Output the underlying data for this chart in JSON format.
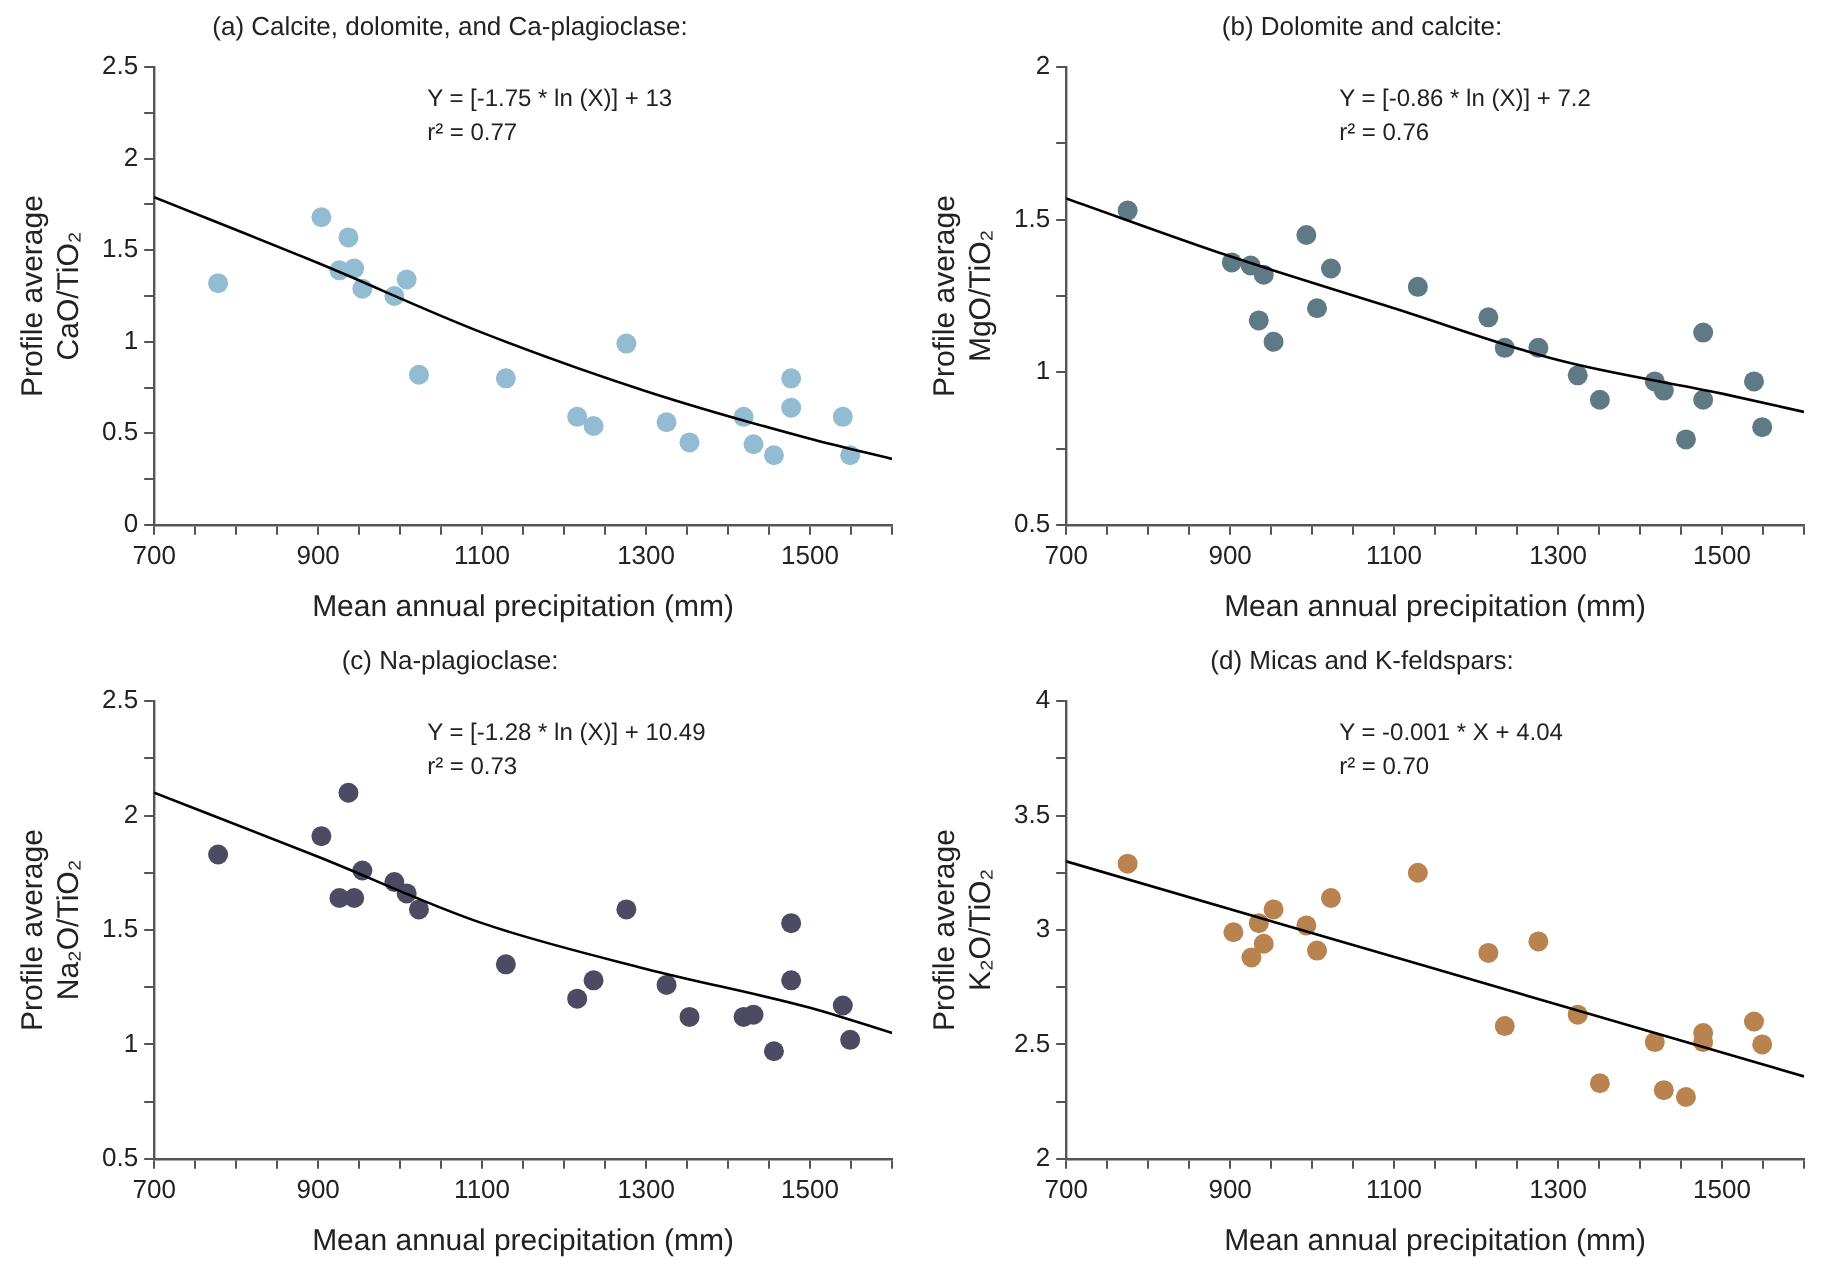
{
  "chart_data": [
    {
      "type": "scatter",
      "title": "(a) Calcite, dolomite, and Ca-plagioclase:",
      "xlabel": "Mean annual precipitation (mm)",
      "ylabel": "Profile average\nCaO/TiO₂",
      "annotations": [
        "Y = [-1.75 * ln (X)] + 13",
        "r² = 0.77"
      ],
      "legend": false,
      "grid": false,
      "marker": "circle",
      "xlim": [
        700,
        1600
      ],
      "xticks": [
        700,
        {
          "value": 750,
          "label": null
        },
        {
          "value": 800,
          "label": null
        },
        {
          "value": 850,
          "label": null
        },
        900,
        {
          "value": 950,
          "label": null
        },
        {
          "value": 1000,
          "label": null
        },
        {
          "value": 1050,
          "label": null
        },
        1100,
        {
          "value": 1150,
          "label": null
        },
        {
          "value": 1200,
          "label": null
        },
        {
          "value": 1250,
          "label": null
        },
        1300,
        {
          "value": 1350,
          "label": null
        },
        {
          "value": 1400,
          "label": null
        },
        {
          "value": 1450,
          "label": null
        },
        1500,
        {
          "value": 1550,
          "label": null
        },
        {
          "value": 1600,
          "label": null
        }
      ],
      "ylim": [
        0,
        2.5
      ],
      "yticks": [
        0,
        {
          "value": 0.25,
          "label": null
        },
        0.5,
        {
          "value": 0.75,
          "label": null
        },
        1,
        {
          "value": 1.25,
          "label": null
        },
        1.5,
        {
          "value": 1.75,
          "label": null
        },
        2,
        {
          "value": 2.25,
          "label": null
        },
        2.5
      ],
      "x": [
        778,
        904,
        937,
        926,
        944,
        954,
        993,
        1008,
        1023,
        1129,
        1216,
        1236,
        1276,
        1325,
        1353,
        1419,
        1431,
        1456,
        1477,
        1477,
        1540,
        1549
      ],
      "series": [
        {
          "type": "scatter",
          "color": "#93bbd2",
          "values": [
            1.32,
            1.68,
            1.57,
            1.39,
            1.4,
            1.29,
            1.25,
            1.34,
            0.82,
            0.8,
            0.59,
            0.54,
            0.99,
            0.56,
            0.45,
            0.59,
            0.44,
            0.38,
            0.8,
            0.64,
            0.59,
            0.38
          ]
        },
        {
          "type": "line",
          "color": "#000000",
          "line_style": "solid",
          "marker": "none",
          "x": [
            700,
            900,
            1100,
            1300,
            1500,
            1600
          ],
          "values": [
            1.79,
            1.43,
            1.05,
            0.73,
            0.47,
            0.36
          ]
        }
      ]
    },
    {
      "type": "scatter",
      "title": "(b) Dolomite and calcite:",
      "xlabel": "Mean annual precipitation (mm)",
      "ylabel": "Profile average\nMgO/TiO₂",
      "annotations": [
        "Y = [-0.86 * ln (X)] + 7.2",
        "r² = 0.76"
      ],
      "legend": false,
      "grid": false,
      "marker": "circle",
      "xlim": [
        700,
        1600
      ],
      "xticks": [
        700,
        {
          "value": 750,
          "label": null
        },
        {
          "value": 800,
          "label": null
        },
        {
          "value": 850,
          "label": null
        },
        900,
        {
          "value": 950,
          "label": null
        },
        {
          "value": 1000,
          "label": null
        },
        {
          "value": 1050,
          "label": null
        },
        1100,
        {
          "value": 1150,
          "label": null
        },
        {
          "value": 1200,
          "label": null
        },
        {
          "value": 1250,
          "label": null
        },
        1300,
        {
          "value": 1350,
          "label": null
        },
        {
          "value": 1400,
          "label": null
        },
        {
          "value": 1450,
          "label": null
        },
        1500,
        {
          "value": 1550,
          "label": null
        },
        {
          "value": 1600,
          "label": null
        }
      ],
      "ylim": [
        0.5,
        2
      ],
      "yticks": [
        0.5,
        {
          "value": 0.75,
          "label": null
        },
        1,
        {
          "value": 1.25,
          "label": null
        },
        1.5,
        {
          "value": 1.75,
          "label": null
        },
        2
      ],
      "x": [
        775,
        902,
        925,
        941,
        935,
        953,
        993,
        1006,
        1023,
        1129,
        1215,
        1235,
        1276,
        1324,
        1351,
        1418,
        1429,
        1456,
        1477,
        1477,
        1539,
        1549
      ],
      "series": [
        {
          "type": "scatter",
          "color": "#5f7a84",
          "values": [
            1.53,
            1.36,
            1.35,
            1.32,
            1.17,
            1.1,
            1.45,
            1.21,
            1.34,
            1.28,
            1.18,
            1.08,
            1.08,
            0.99,
            0.91,
            0.97,
            0.94,
            0.78,
            1.13,
            0.91,
            0.97,
            0.82
          ]
        },
        {
          "type": "line",
          "color": "#000000",
          "line_style": "solid",
          "marker": "none",
          "x": [
            700,
            900,
            1100,
            1300,
            1500,
            1600
          ],
          "values": [
            1.57,
            1.38,
            1.21,
            1.04,
            0.93,
            0.87
          ]
        }
      ]
    },
    {
      "type": "scatter",
      "title": "(c) Na-plagioclase:",
      "xlabel": "Mean annual precipitation (mm)",
      "ylabel": "Profile average\nNa₂O/TiO₂",
      "annotations": [
        "Y = [-1.28 * ln (X)] + 10.49",
        "r² = 0.73"
      ],
      "legend": false,
      "grid": false,
      "marker": "circle",
      "xlim": [
        700,
        1600
      ],
      "xticks": [
        700,
        {
          "value": 750,
          "label": null
        },
        {
          "value": 800,
          "label": null
        },
        {
          "value": 850,
          "label": null
        },
        900,
        {
          "value": 950,
          "label": null
        },
        {
          "value": 1000,
          "label": null
        },
        {
          "value": 1050,
          "label": null
        },
        1100,
        {
          "value": 1150,
          "label": null
        },
        {
          "value": 1200,
          "label": null
        },
        {
          "value": 1250,
          "label": null
        },
        1300,
        {
          "value": 1350,
          "label": null
        },
        {
          "value": 1400,
          "label": null
        },
        {
          "value": 1450,
          "label": null
        },
        1500,
        {
          "value": 1550,
          "label": null
        },
        {
          "value": 1600,
          "label": null
        }
      ],
      "ylim": [
        0.5,
        2.5
      ],
      "yticks": [
        0.5,
        {
          "value": 0.75,
          "label": null
        },
        1,
        {
          "value": 1.25,
          "label": null
        },
        1.5,
        {
          "value": 1.75,
          "label": null
        },
        2,
        {
          "value": 2.25,
          "label": null
        },
        2.5
      ],
      "x": [
        778,
        904,
        937,
        926,
        944,
        954,
        993,
        1008,
        1023,
        1129,
        1216,
        1236,
        1276,
        1325,
        1353,
        1419,
        1431,
        1456,
        1477,
        1477,
        1540,
        1549
      ],
      "series": [
        {
          "type": "scatter",
          "color": "#4d4a63",
          "values": [
            1.83,
            1.91,
            2.1,
            1.64,
            1.64,
            1.76,
            1.71,
            1.66,
            1.59,
            1.35,
            1.2,
            1.28,
            1.59,
            1.26,
            1.12,
            1.12,
            1.13,
            0.97,
            1.53,
            1.28,
            1.17,
            1.02
          ]
        },
        {
          "type": "line",
          "color": "#000000",
          "line_style": "solid",
          "marker": "none",
          "x": [
            700,
            900,
            1100,
            1300,
            1500,
            1600
          ],
          "values": [
            2.1,
            1.82,
            1.53,
            1.33,
            1.16,
            1.05
          ]
        }
      ]
    },
    {
      "type": "scatter",
      "title": "(d) Micas and K-feldspars:",
      "xlabel": "Mean annual precipitation (mm)",
      "ylabel": "Profile average\nK₂O/TiO₂",
      "annotations": [
        "Y = -0.001 * X + 4.04",
        "r² = 0.70"
      ],
      "legend": false,
      "grid": false,
      "marker": "circle",
      "xlim": [
        700,
        1600
      ],
      "xticks": [
        700,
        {
          "value": 750,
          "label": null
        },
        {
          "value": 800,
          "label": null
        },
        {
          "value": 850,
          "label": null
        },
        900,
        {
          "value": 950,
          "label": null
        },
        {
          "value": 1000,
          "label": null
        },
        {
          "value": 1050,
          "label": null
        },
        1100,
        {
          "value": 1150,
          "label": null
        },
        {
          "value": 1200,
          "label": null
        },
        {
          "value": 1250,
          "label": null
        },
        1300,
        {
          "value": 1350,
          "label": null
        },
        {
          "value": 1400,
          "label": null
        },
        {
          "value": 1450,
          "label": null
        },
        1500,
        {
          "value": 1550,
          "label": null
        },
        {
          "value": 1600,
          "label": null
        }
      ],
      "ylim": [
        2,
        4
      ],
      "yticks": [
        2,
        {
          "value": 2.25,
          "label": null
        },
        2.5,
        {
          "value": 2.75,
          "label": null
        },
        3,
        {
          "value": 3.25,
          "label": null
        },
        3.5,
        {
          "value": 3.75,
          "label": null
        },
        4
      ],
      "x": [
        775,
        904,
        926,
        935,
        941,
        953,
        993,
        1006,
        1023,
        1129,
        1215,
        1235,
        1276,
        1324,
        1351,
        1418,
        1429,
        1456,
        1477,
        1477,
        1539,
        1549
      ],
      "series": [
        {
          "type": "scatter",
          "color": "#b8834f",
          "values": [
            3.29,
            2.99,
            2.88,
            3.03,
            2.94,
            3.09,
            3.02,
            2.91,
            3.14,
            3.25,
            2.9,
            2.58,
            2.95,
            2.63,
            2.33,
            2.51,
            2.3,
            2.27,
            2.55,
            2.51,
            2.6,
            2.5
          ]
        },
        {
          "type": "line",
          "color": "#000000",
          "line_style": "solid",
          "marker": "none",
          "x": [
            700,
            1600
          ],
          "values": [
            3.3,
            2.36
          ]
        }
      ]
    }
  ]
}
